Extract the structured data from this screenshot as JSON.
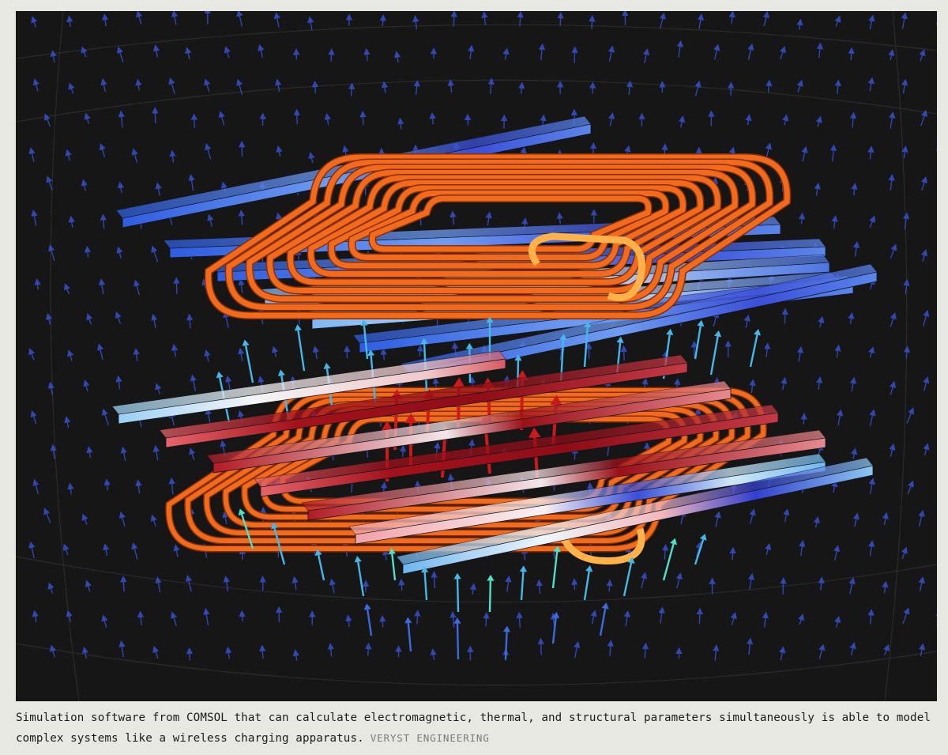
{
  "figure": {
    "subject": "wireless-charging-simulation",
    "colors": {
      "background": "#161616",
      "coil": "#f26a1b",
      "coil_dark": "#8a2e08",
      "coil_highlight": "#ffb14a",
      "bar_blue": "#3e6de0",
      "bar_light": "#9fd0f4",
      "bar_white": "#eef3f6",
      "bar_red": "#a3131c",
      "bar_pink": "#f2a7ad",
      "arrow_blue": "#3550d0",
      "arrow_cyan": "#45b7ea",
      "arrow_teal": "#4fe0c9",
      "arrow_red": "#cc1a1a"
    }
  },
  "caption": {
    "text": "Simulation software from COMSOL that can calculate electromagnetic, thermal, and structural parameters simultaneously is able to model complex systems like a wireless charging apparatus.",
    "credit": "VERYST ENGINEERING"
  }
}
